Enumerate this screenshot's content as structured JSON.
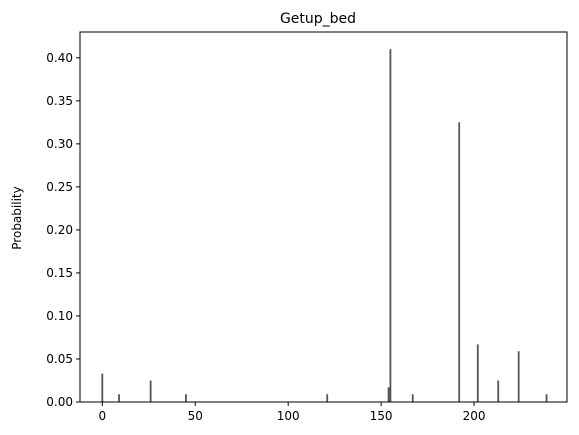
{
  "chart_data": {
    "type": "bar",
    "title": "Getup_bed",
    "xlabel": "",
    "ylabel": "Probability",
    "xlim": [
      -12,
      250
    ],
    "ylim": [
      0,
      0.43
    ],
    "xticks": [
      0,
      50,
      100,
      150,
      200
    ],
    "yticks": [
      0.0,
      0.05,
      0.1,
      0.15,
      0.2,
      0.25,
      0.3,
      0.35,
      0.4
    ],
    "ytick_labels": [
      "0.00",
      "0.05",
      "0.10",
      "0.15",
      "0.20",
      "0.25",
      "0.30",
      "0.35",
      "0.40"
    ],
    "grid": false,
    "legend": "none",
    "bar_color": "#555555",
    "points": [
      {
        "x": 0,
        "y": 0.033
      },
      {
        "x": 9,
        "y": 0.009
      },
      {
        "x": 26,
        "y": 0.025
      },
      {
        "x": 45,
        "y": 0.009
      },
      {
        "x": 121,
        "y": 0.009
      },
      {
        "x": 154,
        "y": 0.017
      },
      {
        "x": 155,
        "y": 0.41
      },
      {
        "x": 167,
        "y": 0.009
      },
      {
        "x": 192,
        "y": 0.325
      },
      {
        "x": 202,
        "y": 0.067
      },
      {
        "x": 213,
        "y": 0.025
      },
      {
        "x": 224,
        "y": 0.059
      },
      {
        "x": 239,
        "y": 0.009
      }
    ]
  }
}
